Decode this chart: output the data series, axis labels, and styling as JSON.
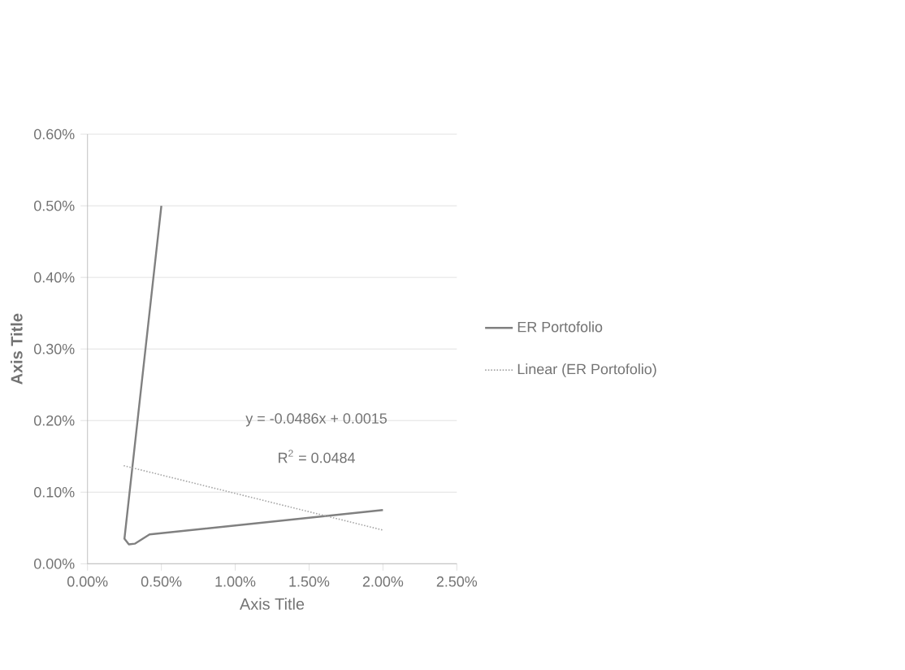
{
  "chart_data": {
    "type": "line",
    "xlabel": "Axis Title",
    "ylabel": "Axis Title",
    "series": [
      {
        "name": "ER Portofolio",
        "color": "#808080",
        "line_style": "solid",
        "x": [
          0.5,
          0.25,
          0.28,
          0.32,
          0.42,
          2.0
        ],
        "values": [
          0.5,
          0.035,
          0.027,
          0.028,
          0.041,
          0.075
        ]
      },
      {
        "name": "Linear (ER Portofolio)",
        "color": "#a6a6a6",
        "line_style": "dotted",
        "x": [
          0.245,
          2.0
        ],
        "values": [
          0.137,
          0.047
        ]
      }
    ],
    "annotations": [
      "y = -0.0486x + 0.0015",
      "R$^{2}$ = 0.0484"
    ],
    "xlim": [
      0,
      2.5
    ],
    "ylim": [
      0,
      0.6
    ],
    "xticks": [
      {
        "value": 0,
        "label": "0.00%"
      },
      {
        "value": 0.5,
        "label": "0.50%"
      },
      {
        "value": 1.0,
        "label": "1.00%"
      },
      {
        "value": 1.5,
        "label": "1.50%"
      },
      {
        "value": 2.0,
        "label": "2.00%"
      },
      {
        "value": 2.5,
        "label": "2.50%"
      }
    ],
    "yticks": [
      {
        "value": 0,
        "label": "0.00%"
      },
      {
        "value": 0.1,
        "label": "0.10%"
      },
      {
        "value": 0.2,
        "label": "0.20%"
      },
      {
        "value": 0.3,
        "label": "0.30%"
      },
      {
        "value": 0.4,
        "label": "0.40%"
      },
      {
        "value": 0.5,
        "label": "0.50%"
      },
      {
        "value": 0.6,
        "label": "0.60%"
      }
    ],
    "grid": "y",
    "legend": "right",
    "marker": "none"
  }
}
